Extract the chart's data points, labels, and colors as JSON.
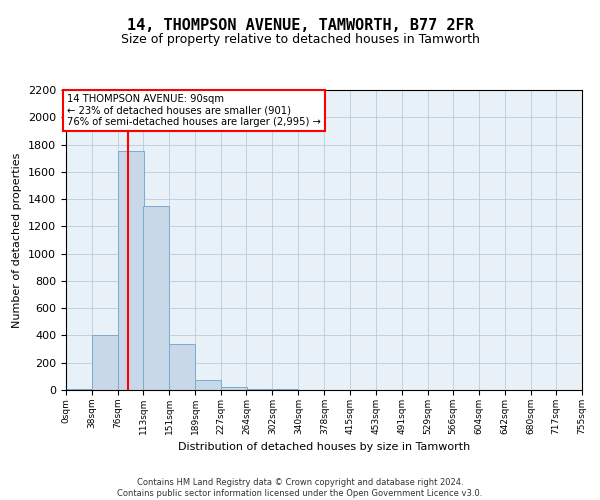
{
  "title1": "14, THOMPSON AVENUE, TAMWORTH, B77 2FR",
  "title2": "Size of property relative to detached houses in Tamworth",
  "xlabel": "Distribution of detached houses by size in Tamworth",
  "ylabel": "Number of detached properties",
  "bin_edges": [
    0,
    38,
    76,
    113,
    151,
    189,
    227,
    264,
    302,
    340,
    378,
    415,
    453,
    491,
    529,
    566,
    604,
    642,
    680,
    717,
    755
  ],
  "bin_counts": [
    5,
    400,
    1750,
    1350,
    340,
    75,
    25,
    10,
    5,
    0,
    0,
    0,
    0,
    0,
    0,
    0,
    0,
    0,
    0,
    0
  ],
  "bar_color": "#c8d8e8",
  "bar_edgecolor": "#7aabcf",
  "property_line_x": 90,
  "property_line_color": "red",
  "annotation_text": "14 THOMPSON AVENUE: 90sqm\n← 23% of detached houses are smaller (901)\n76% of semi-detached houses are larger (2,995) →",
  "annotation_box_color": "white",
  "annotation_box_edgecolor": "red",
  "ylim": [
    0,
    2200
  ],
  "yticks": [
    0,
    200,
    400,
    600,
    800,
    1000,
    1200,
    1400,
    1600,
    1800,
    2000,
    2200
  ],
  "tick_labels": [
    "0sqm",
    "38sqm",
    "76sqm",
    "113sqm",
    "151sqm",
    "189sqm",
    "227sqm",
    "264sqm",
    "302sqm",
    "340sqm",
    "378sqm",
    "415sqm",
    "453sqm",
    "491sqm",
    "529sqm",
    "566sqm",
    "604sqm",
    "642sqm",
    "680sqm",
    "717sqm",
    "755sqm"
  ],
  "footer_text": "Contains HM Land Registry data © Crown copyright and database right 2024.\nContains public sector information licensed under the Open Government Licence v3.0.",
  "grid_color": "#b0c4d8",
  "background_color": "#e8f0f8",
  "title1_fontsize": 11,
  "title2_fontsize": 9,
  "ylabel_fontsize": 8,
  "xlabel_fontsize": 8,
  "ytick_fontsize": 8,
  "xtick_fontsize": 6.5
}
